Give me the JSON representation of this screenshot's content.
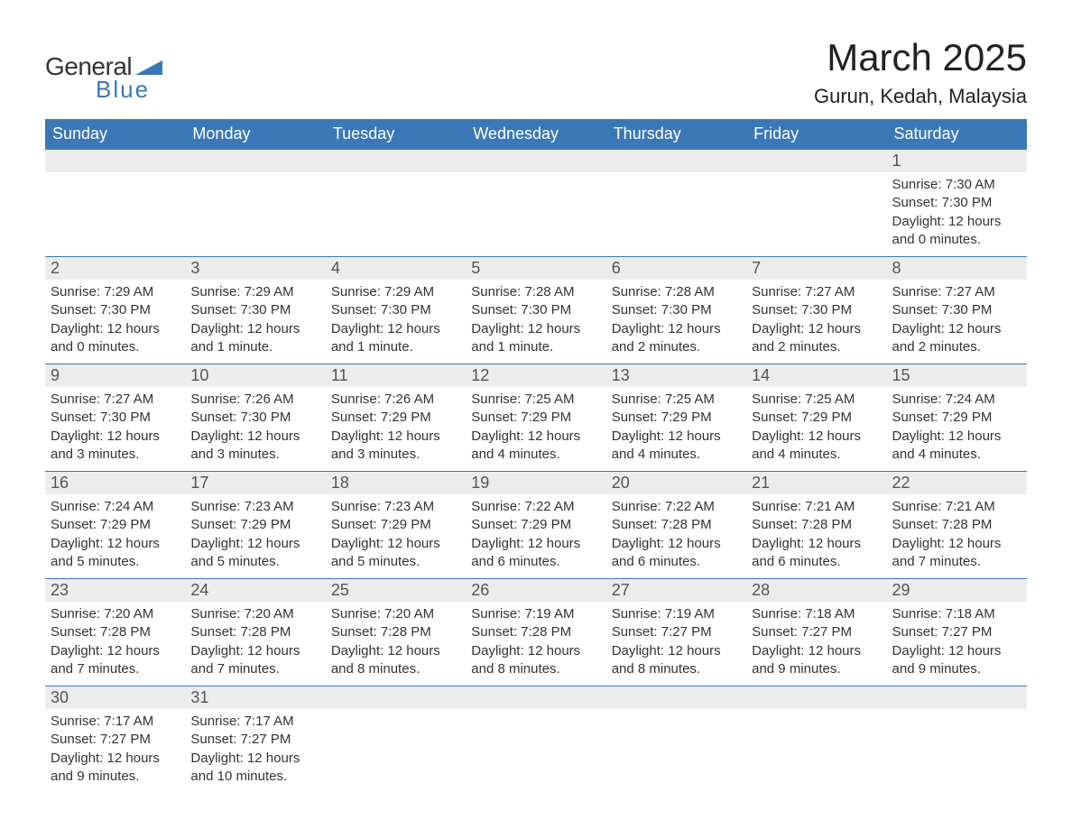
{
  "logo": {
    "word1": "General",
    "word2": "Blue",
    "color_text": "#333333",
    "color_blue": "#3b78b8"
  },
  "title": "March 2025",
  "location": "Gurun, Kedah, Malaysia",
  "colors": {
    "header_bg": "#3b78b8",
    "header_fg": "#ffffff",
    "daynum_bg": "#ececec",
    "text": "#333333",
    "border": "#3b78b8",
    "background": "#ffffff"
  },
  "typography": {
    "title_fontsize": 42,
    "location_fontsize": 22,
    "header_fontsize": 18,
    "daynum_fontsize": 18,
    "body_fontsize": 15,
    "font_family": "Arial"
  },
  "weekday_headers": [
    "Sunday",
    "Monday",
    "Tuesday",
    "Wednesday",
    "Thursday",
    "Friday",
    "Saturday"
  ],
  "weeks": [
    [
      {
        "empty": true
      },
      {
        "empty": true
      },
      {
        "empty": true
      },
      {
        "empty": true
      },
      {
        "empty": true
      },
      {
        "empty": true
      },
      {
        "day": "1",
        "sunrise": "Sunrise: 7:30 AM",
        "sunset": "Sunset: 7:30 PM",
        "daylight1": "Daylight: 12 hours",
        "daylight2": "and 0 minutes."
      }
    ],
    [
      {
        "day": "2",
        "sunrise": "Sunrise: 7:29 AM",
        "sunset": "Sunset: 7:30 PM",
        "daylight1": "Daylight: 12 hours",
        "daylight2": "and 0 minutes."
      },
      {
        "day": "3",
        "sunrise": "Sunrise: 7:29 AM",
        "sunset": "Sunset: 7:30 PM",
        "daylight1": "Daylight: 12 hours",
        "daylight2": "and 1 minute."
      },
      {
        "day": "4",
        "sunrise": "Sunrise: 7:29 AM",
        "sunset": "Sunset: 7:30 PM",
        "daylight1": "Daylight: 12 hours",
        "daylight2": "and 1 minute."
      },
      {
        "day": "5",
        "sunrise": "Sunrise: 7:28 AM",
        "sunset": "Sunset: 7:30 PM",
        "daylight1": "Daylight: 12 hours",
        "daylight2": "and 1 minute."
      },
      {
        "day": "6",
        "sunrise": "Sunrise: 7:28 AM",
        "sunset": "Sunset: 7:30 PM",
        "daylight1": "Daylight: 12 hours",
        "daylight2": "and 2 minutes."
      },
      {
        "day": "7",
        "sunrise": "Sunrise: 7:27 AM",
        "sunset": "Sunset: 7:30 PM",
        "daylight1": "Daylight: 12 hours",
        "daylight2": "and 2 minutes."
      },
      {
        "day": "8",
        "sunrise": "Sunrise: 7:27 AM",
        "sunset": "Sunset: 7:30 PM",
        "daylight1": "Daylight: 12 hours",
        "daylight2": "and 2 minutes."
      }
    ],
    [
      {
        "day": "9",
        "sunrise": "Sunrise: 7:27 AM",
        "sunset": "Sunset: 7:30 PM",
        "daylight1": "Daylight: 12 hours",
        "daylight2": "and 3 minutes."
      },
      {
        "day": "10",
        "sunrise": "Sunrise: 7:26 AM",
        "sunset": "Sunset: 7:30 PM",
        "daylight1": "Daylight: 12 hours",
        "daylight2": "and 3 minutes."
      },
      {
        "day": "11",
        "sunrise": "Sunrise: 7:26 AM",
        "sunset": "Sunset: 7:29 PM",
        "daylight1": "Daylight: 12 hours",
        "daylight2": "and 3 minutes."
      },
      {
        "day": "12",
        "sunrise": "Sunrise: 7:25 AM",
        "sunset": "Sunset: 7:29 PM",
        "daylight1": "Daylight: 12 hours",
        "daylight2": "and 4 minutes."
      },
      {
        "day": "13",
        "sunrise": "Sunrise: 7:25 AM",
        "sunset": "Sunset: 7:29 PM",
        "daylight1": "Daylight: 12 hours",
        "daylight2": "and 4 minutes."
      },
      {
        "day": "14",
        "sunrise": "Sunrise: 7:25 AM",
        "sunset": "Sunset: 7:29 PM",
        "daylight1": "Daylight: 12 hours",
        "daylight2": "and 4 minutes."
      },
      {
        "day": "15",
        "sunrise": "Sunrise: 7:24 AM",
        "sunset": "Sunset: 7:29 PM",
        "daylight1": "Daylight: 12 hours",
        "daylight2": "and 4 minutes."
      }
    ],
    [
      {
        "day": "16",
        "sunrise": "Sunrise: 7:24 AM",
        "sunset": "Sunset: 7:29 PM",
        "daylight1": "Daylight: 12 hours",
        "daylight2": "and 5 minutes."
      },
      {
        "day": "17",
        "sunrise": "Sunrise: 7:23 AM",
        "sunset": "Sunset: 7:29 PM",
        "daylight1": "Daylight: 12 hours",
        "daylight2": "and 5 minutes."
      },
      {
        "day": "18",
        "sunrise": "Sunrise: 7:23 AM",
        "sunset": "Sunset: 7:29 PM",
        "daylight1": "Daylight: 12 hours",
        "daylight2": "and 5 minutes."
      },
      {
        "day": "19",
        "sunrise": "Sunrise: 7:22 AM",
        "sunset": "Sunset: 7:29 PM",
        "daylight1": "Daylight: 12 hours",
        "daylight2": "and 6 minutes."
      },
      {
        "day": "20",
        "sunrise": "Sunrise: 7:22 AM",
        "sunset": "Sunset: 7:28 PM",
        "daylight1": "Daylight: 12 hours",
        "daylight2": "and 6 minutes."
      },
      {
        "day": "21",
        "sunrise": "Sunrise: 7:21 AM",
        "sunset": "Sunset: 7:28 PM",
        "daylight1": "Daylight: 12 hours",
        "daylight2": "and 6 minutes."
      },
      {
        "day": "22",
        "sunrise": "Sunrise: 7:21 AM",
        "sunset": "Sunset: 7:28 PM",
        "daylight1": "Daylight: 12 hours",
        "daylight2": "and 7 minutes."
      }
    ],
    [
      {
        "day": "23",
        "sunrise": "Sunrise: 7:20 AM",
        "sunset": "Sunset: 7:28 PM",
        "daylight1": "Daylight: 12 hours",
        "daylight2": "and 7 minutes."
      },
      {
        "day": "24",
        "sunrise": "Sunrise: 7:20 AM",
        "sunset": "Sunset: 7:28 PM",
        "daylight1": "Daylight: 12 hours",
        "daylight2": "and 7 minutes."
      },
      {
        "day": "25",
        "sunrise": "Sunrise: 7:20 AM",
        "sunset": "Sunset: 7:28 PM",
        "daylight1": "Daylight: 12 hours",
        "daylight2": "and 8 minutes."
      },
      {
        "day": "26",
        "sunrise": "Sunrise: 7:19 AM",
        "sunset": "Sunset: 7:28 PM",
        "daylight1": "Daylight: 12 hours",
        "daylight2": "and 8 minutes."
      },
      {
        "day": "27",
        "sunrise": "Sunrise: 7:19 AM",
        "sunset": "Sunset: 7:27 PM",
        "daylight1": "Daylight: 12 hours",
        "daylight2": "and 8 minutes."
      },
      {
        "day": "28",
        "sunrise": "Sunrise: 7:18 AM",
        "sunset": "Sunset: 7:27 PM",
        "daylight1": "Daylight: 12 hours",
        "daylight2": "and 9 minutes."
      },
      {
        "day": "29",
        "sunrise": "Sunrise: 7:18 AM",
        "sunset": "Sunset: 7:27 PM",
        "daylight1": "Daylight: 12 hours",
        "daylight2": "and 9 minutes."
      }
    ],
    [
      {
        "day": "30",
        "sunrise": "Sunrise: 7:17 AM",
        "sunset": "Sunset: 7:27 PM",
        "daylight1": "Daylight: 12 hours",
        "daylight2": "and 9 minutes."
      },
      {
        "day": "31",
        "sunrise": "Sunrise: 7:17 AM",
        "sunset": "Sunset: 7:27 PM",
        "daylight1": "Daylight: 12 hours",
        "daylight2": "and 10 minutes."
      },
      {
        "empty": true
      },
      {
        "empty": true
      },
      {
        "empty": true
      },
      {
        "empty": true
      },
      {
        "empty": true
      }
    ]
  ]
}
